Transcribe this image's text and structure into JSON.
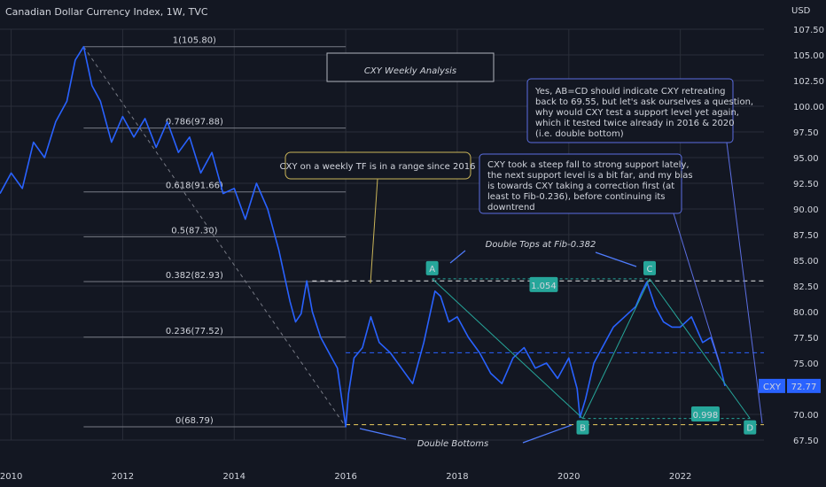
{
  "header": {
    "title": "Canadian Dollar Currency Index, 1W, TVC",
    "currency": "USD"
  },
  "colors": {
    "background": "#131722",
    "price_line": "#2962ff",
    "grid": "#2a2e39",
    "fib_line": "#787b86",
    "dashed_level": "#e5e5e5",
    "dashed_blue": "#2962ff",
    "pattern_line": "#26a69a",
    "badge": "#26a69a",
    "callout_border_yellow": "#c9b458",
    "callout_border_blue": "#5b6ee1",
    "annotation_blue": "#4f7cff"
  },
  "chart_data": {
    "type": "line",
    "title": "CXY Weekly Analysis",
    "symbol": "CXY",
    "last_price": "72.77",
    "y_axis": {
      "ticks": [
        "107.50",
        "105.00",
        "102.50",
        "100.00",
        "97.50",
        "95.00",
        "92.50",
        "90.00",
        "87.50",
        "85.00",
        "82.50",
        "80.00",
        "77.50",
        "75.00",
        "72.50",
        "70.00",
        "67.50"
      ],
      "ylim": [
        67.5,
        107.5
      ],
      "log": false
    },
    "x_axis": {
      "ticks": [
        "2010",
        "2012",
        "2014",
        "2016",
        "2018",
        "2020",
        "2022"
      ],
      "xlim": [
        2009.8,
        2023.5
      ]
    },
    "grid": true,
    "series": [
      {
        "name": "CXY",
        "x": [
          2009.8,
          2010.0,
          2010.2,
          2010.4,
          2010.6,
          2010.8,
          2011.0,
          2011.15,
          2011.3,
          2011.45,
          2011.6,
          2011.8,
          2012.0,
          2012.2,
          2012.4,
          2012.6,
          2012.8,
          2013.0,
          2013.2,
          2013.4,
          2013.6,
          2013.8,
          2014.0,
          2014.2,
          2014.4,
          2014.6,
          2014.8,
          2015.0,
          2015.1,
          2015.2,
          2015.3,
          2015.4,
          2015.55,
          2015.7,
          2015.85,
          2016.0,
          2016.05,
          2016.15,
          2016.3,
          2016.45,
          2016.6,
          2016.8,
          2017.0,
          2017.2,
          2017.4,
          2017.6,
          2017.7,
          2017.85,
          2018.0,
          2018.2,
          2018.4,
          2018.6,
          2018.8,
          2019.0,
          2019.2,
          2019.4,
          2019.6,
          2019.8,
          2020.0,
          2020.15,
          2020.2,
          2020.3,
          2020.45,
          2020.6,
          2020.8,
          2021.0,
          2021.2,
          2021.3,
          2021.4,
          2021.55,
          2021.7,
          2021.85,
          2022.0,
          2022.2,
          2022.4,
          2022.55,
          2022.7,
          2022.8
        ],
        "values": [
          91.5,
          93.5,
          92.0,
          96.5,
          95.0,
          98.5,
          100.5,
          104.5,
          105.8,
          102.0,
          100.5,
          96.5,
          99.0,
          97.0,
          98.8,
          96.0,
          98.5,
          95.5,
          97.0,
          93.5,
          95.5,
          91.5,
          92.0,
          89.0,
          92.5,
          90.0,
          86.0,
          81.0,
          79.0,
          79.8,
          83.0,
          80.0,
          77.5,
          76.0,
          74.5,
          68.79,
          72.0,
          75.5,
          76.5,
          79.5,
          77.0,
          76.0,
          74.5,
          73.0,
          77.0,
          82.0,
          81.5,
          79.0,
          79.5,
          77.5,
          76.0,
          74.0,
          73.0,
          75.5,
          76.5,
          74.5,
          75.0,
          73.5,
          75.5,
          72.5,
          69.7,
          71.5,
          75.0,
          76.5,
          78.5,
          79.5,
          80.5,
          81.8,
          82.9,
          80.5,
          79.0,
          78.5,
          78.5,
          79.5,
          77.0,
          77.5,
          75.0,
          72.77
        ]
      }
    ],
    "fibonacci": [
      {
        "label": "1(105.80)",
        "value": 105.8
      },
      {
        "label": "0.786(97.88)",
        "value": 97.88
      },
      {
        "label": "0.618(91.66)",
        "value": 91.66
      },
      {
        "label": "0.5(87.30)",
        "value": 87.3
      },
      {
        "label": "0.382(82.93)",
        "value": 82.93
      },
      {
        "label": "0.236(77.52)",
        "value": 77.52
      },
      {
        "label": "0(68.79)",
        "value": 68.79
      }
    ],
    "levels": {
      "upper_dashed": 83.0,
      "mid_dashed": 76.0,
      "lower_dashed": 69.0
    },
    "pattern_points": [
      {
        "label": "A",
        "x": 2017.55,
        "y": 83.2
      },
      {
        "label": "B",
        "x": 2020.25,
        "y": 69.6
      },
      {
        "label": "C",
        "x": 2021.45,
        "y": 83.2
      },
      {
        "label": "D",
        "x": 2023.25,
        "y": 69.6
      }
    ],
    "measure_badges": [
      {
        "label": "1.054",
        "x": 2019.55,
        "y": 82.6
      },
      {
        "label": "0.998",
        "x": 2022.45,
        "y": 70.0
      }
    ],
    "annotations": [
      {
        "text": "Double Tops at Fib-0.382"
      },
      {
        "text": "Double Bottoms"
      }
    ],
    "callouts": [
      {
        "text": "CXY on a weekly TF is in a range since 2016"
      },
      {
        "lines": [
          "CXY took a steep fall to strong support lately,",
          "the next support level is a bit far, and my bias",
          "is towards CXY taking a correction first (at",
          "least to Fib-0.236), before continuing its",
          "downtrend"
        ]
      },
      {
        "lines": [
          "Yes, AB=CD should indicate CXY retreating",
          "back to 69.55, but let's ask ourselves a question,",
          "why would CXY test a support level yet again,",
          "which it tested twice already in 2016 & 2020",
          "(i.e. double bottom)"
        ]
      }
    ]
  }
}
